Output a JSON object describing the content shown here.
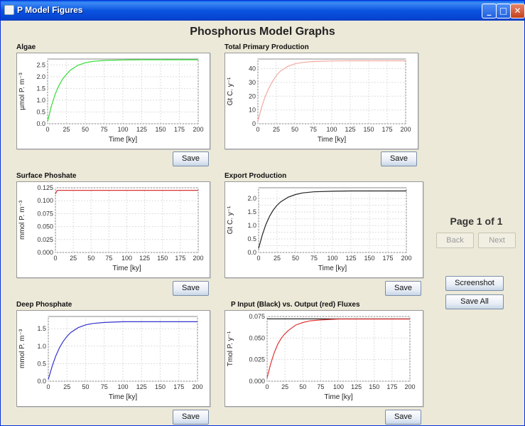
{
  "window": {
    "title": "P Model Figures",
    "minimize": "_",
    "maximize": "□",
    "close": "✕"
  },
  "main_title": "Phosphorus Model Graphs",
  "charts": [
    {
      "title": "Algae",
      "ylabel": "µmol P. m⁻³",
      "xlabel": "Time [ky]",
      "save": "Save"
    },
    {
      "title": "Total Primary Production",
      "ylabel": "Gt C. y⁻¹",
      "xlabel": "Time [ky]",
      "save": "Save"
    },
    {
      "title": "Surface Phoshate",
      "ylabel": "mmol P. m⁻³",
      "xlabel": "Time [ky]",
      "save": "Save"
    },
    {
      "title": "Export Production",
      "ylabel": "Gt C. y⁻¹",
      "xlabel": "Time [ky]",
      "save": "Save"
    },
    {
      "title": "Deep Phosphate",
      "ylabel": "mmol P. m⁻³",
      "xlabel": "Time [ky]",
      "save": "Save"
    },
    {
      "title": "P Input (Black) vs. Output (red) Fluxes",
      "ylabel": "Tmol P. y⁻¹",
      "xlabel": "Time [ky]",
      "save": "Save"
    }
  ],
  "pager": {
    "label": "Page 1 of 1",
    "back": "Back",
    "next": "Next"
  },
  "actions": {
    "screenshot": "Screenshot",
    "save_all": "Save All"
  },
  "chart_data": [
    {
      "type": "line",
      "title": "Algae",
      "xlabel": "Time [ky]",
      "ylabel": "µmol P. m⁻³",
      "xlim": [
        0,
        200
      ],
      "ylim": [
        0,
        2.75
      ],
      "xticks": [
        0,
        25,
        50,
        75,
        100,
        125,
        150,
        175,
        200
      ],
      "yticks": [
        0.0,
        0.5,
        1.0,
        1.5,
        2.0,
        2.5
      ],
      "ytick_labels": [
        "0.0",
        "0.5",
        "1.0",
        "1.5",
        "2.0",
        "2.5"
      ],
      "series": [
        {
          "color": "#33dd33",
          "x": [
            0,
            5,
            10,
            15,
            20,
            25,
            30,
            40,
            50,
            60,
            75,
            100,
            125,
            150,
            175,
            200
          ],
          "y": [
            0.1,
            0.75,
            1.25,
            1.62,
            1.9,
            2.1,
            2.27,
            2.48,
            2.59,
            2.65,
            2.69,
            2.71,
            2.72,
            2.72,
            2.72,
            2.72
          ]
        }
      ]
    },
    {
      "type": "line",
      "title": "Total Primary Production",
      "xlabel": "Time [ky]",
      "ylabel": "Gt C. y⁻¹",
      "xlim": [
        0,
        200
      ],
      "ylim": [
        0,
        47
      ],
      "xticks": [
        0,
        25,
        50,
        75,
        100,
        125,
        150,
        175,
        200
      ],
      "yticks": [
        0,
        10,
        20,
        30,
        40
      ],
      "ytick_labels": [
        "0",
        "10",
        "20",
        "30",
        "40"
      ],
      "series": [
        {
          "color": "#f4a8a0",
          "x": [
            0,
            5,
            10,
            15,
            20,
            25,
            30,
            40,
            50,
            60,
            75,
            100,
            125,
            150,
            175,
            200
          ],
          "y": [
            2,
            12,
            20,
            26,
            31,
            35,
            38,
            41.5,
            43.5,
            44.5,
            45.2,
            45.6,
            45.7,
            45.7,
            45.7,
            45.7
          ]
        }
      ]
    },
    {
      "type": "line",
      "title": "Surface Phoshate",
      "xlabel": "Time [ky]",
      "ylabel": "mmol P. m⁻³",
      "xlim": [
        0,
        200
      ],
      "ylim": [
        0,
        0.125
      ],
      "xticks": [
        0,
        25,
        50,
        75,
        100,
        125,
        150,
        175,
        200
      ],
      "yticks": [
        0.0,
        0.025,
        0.05,
        0.075,
        0.1,
        0.125
      ],
      "ytick_labels": [
        "0.000",
        "0.025",
        "0.050",
        "0.075",
        "0.100",
        "0.125"
      ],
      "series": [
        {
          "color": "#dd3333",
          "x": [
            0,
            1,
            2,
            3,
            5,
            200
          ],
          "y": [
            0.113,
            0.116,
            0.119,
            0.12,
            0.12,
            0.12
          ]
        }
      ]
    },
    {
      "type": "line",
      "title": "Export Production",
      "xlabel": "Time [ky]",
      "ylabel": "Gt C. y⁻¹",
      "xlim": [
        0,
        200
      ],
      "ylim": [
        0,
        2.4
      ],
      "xticks": [
        0,
        25,
        50,
        75,
        100,
        125,
        150,
        175,
        200
      ],
      "yticks": [
        0.0,
        0.25,
        0.5,
        0.75,
        1.0,
        1.25,
        1.5,
        1.75,
        2.0
      ],
      "ytick_labels": [
        "0.0",
        "",
        "0.5",
        "",
        "1.0",
        "",
        "1.5",
        "",
        "2.0"
      ],
      "series": [
        {
          "color": "#222222",
          "x": [
            0,
            5,
            10,
            15,
            20,
            25,
            30,
            40,
            50,
            60,
            75,
            100,
            125,
            150,
            175,
            200
          ],
          "y": [
            0.15,
            0.65,
            1.05,
            1.35,
            1.58,
            1.75,
            1.88,
            2.05,
            2.15,
            2.21,
            2.25,
            2.27,
            2.28,
            2.28,
            2.28,
            2.28
          ]
        }
      ]
    },
    {
      "type": "line",
      "title": "Deep Phosphate",
      "xlabel": "Time [ky]",
      "ylabel": "mmol P. m⁻³",
      "xlim": [
        0,
        200
      ],
      "ylim": [
        0,
        1.85
      ],
      "xticks": [
        0,
        25,
        50,
        75,
        100,
        125,
        150,
        175,
        200
      ],
      "yticks": [
        0.0,
        0.5,
        1.0,
        1.5
      ],
      "ytick_labels": [
        "0.0",
        "0.5",
        "1.0",
        "1.5"
      ],
      "series": [
        {
          "color": "#3333cc",
          "x": [
            0,
            5,
            10,
            15,
            20,
            25,
            30,
            40,
            50,
            60,
            75,
            100,
            125,
            150,
            175,
            200
          ],
          "y": [
            0.05,
            0.42,
            0.72,
            0.96,
            1.14,
            1.28,
            1.39,
            1.53,
            1.61,
            1.65,
            1.68,
            1.7,
            1.7,
            1.7,
            1.7,
            1.7
          ]
        }
      ]
    },
    {
      "type": "line",
      "title": "P Input (Black) vs. Output (red) Fluxes",
      "xlabel": "Time [ky]",
      "ylabel": "Tmol P. y⁻¹",
      "xlim": [
        0,
        200
      ],
      "ylim": [
        0,
        0.075
      ],
      "xticks": [
        0,
        25,
        50,
        75,
        100,
        125,
        150,
        175,
        200
      ],
      "yticks": [
        0.0,
        0.025,
        0.05,
        0.075
      ],
      "ytick_labels": [
        "0.000",
        "0.025",
        "0.050",
        "0.075"
      ],
      "series": [
        {
          "color": "#222222",
          "x": [
            0,
            200
          ],
          "y": [
            0.0722,
            0.0722
          ]
        },
        {
          "color": "#dd3333",
          "x": [
            0,
            5,
            10,
            15,
            20,
            25,
            30,
            40,
            50,
            60,
            75,
            100,
            125,
            150,
            175,
            200
          ],
          "y": [
            0.004,
            0.02,
            0.033,
            0.043,
            0.05,
            0.055,
            0.059,
            0.065,
            0.068,
            0.07,
            0.071,
            0.072,
            0.072,
            0.072,
            0.072,
            0.072
          ]
        }
      ]
    }
  ]
}
